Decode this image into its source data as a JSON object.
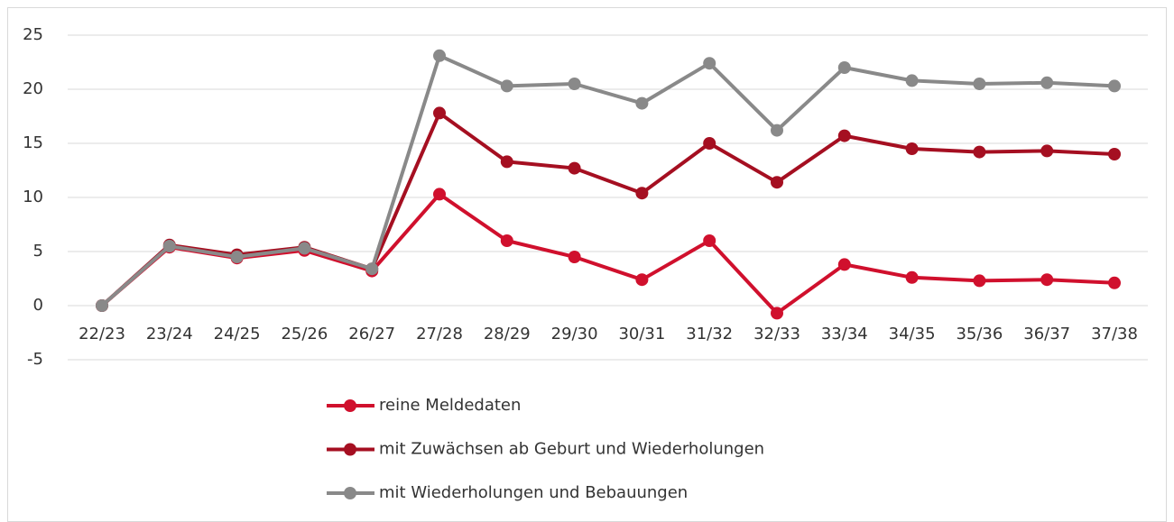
{
  "chart_data": {
    "type": "line",
    "categories": [
      "22/23",
      "23/24",
      "24/25",
      "25/26",
      "26/27",
      "27/28",
      "28/29",
      "29/30",
      "30/31",
      "31/32",
      "32/33",
      "33/34",
      "34/35",
      "35/36",
      "36/37",
      "37/38"
    ],
    "series": [
      {
        "name": "reine Meldedaten",
        "color": "#d0102d",
        "values": [
          0,
          5.4,
          4.4,
          5.1,
          3.2,
          10.3,
          6.0,
          4.5,
          2.4,
          6.0,
          -0.7,
          3.8,
          2.6,
          2.3,
          2.4,
          2.1
        ]
      },
      {
        "name": "mit Zuwächsen ab Geburt und Wiederholungen",
        "color": "#a50f21",
        "values": [
          0,
          5.6,
          4.7,
          5.4,
          3.4,
          17.8,
          13.3,
          12.7,
          10.4,
          15.0,
          11.4,
          15.7,
          14.5,
          14.2,
          14.3,
          14.0
        ]
      },
      {
        "name": "mit Wiederholungen und Bebauungen",
        "color": "#898989",
        "values": [
          0,
          5.5,
          4.5,
          5.3,
          3.4,
          23.1,
          20.3,
          20.5,
          18.7,
          22.4,
          16.2,
          22.0,
          20.8,
          20.5,
          20.6,
          20.3
        ]
      }
    ],
    "ylim": [
      -5,
      25
    ],
    "yticks": [
      -5,
      0,
      5,
      10,
      15,
      20,
      25
    ],
    "grid": true,
    "legend": "bottom"
  }
}
